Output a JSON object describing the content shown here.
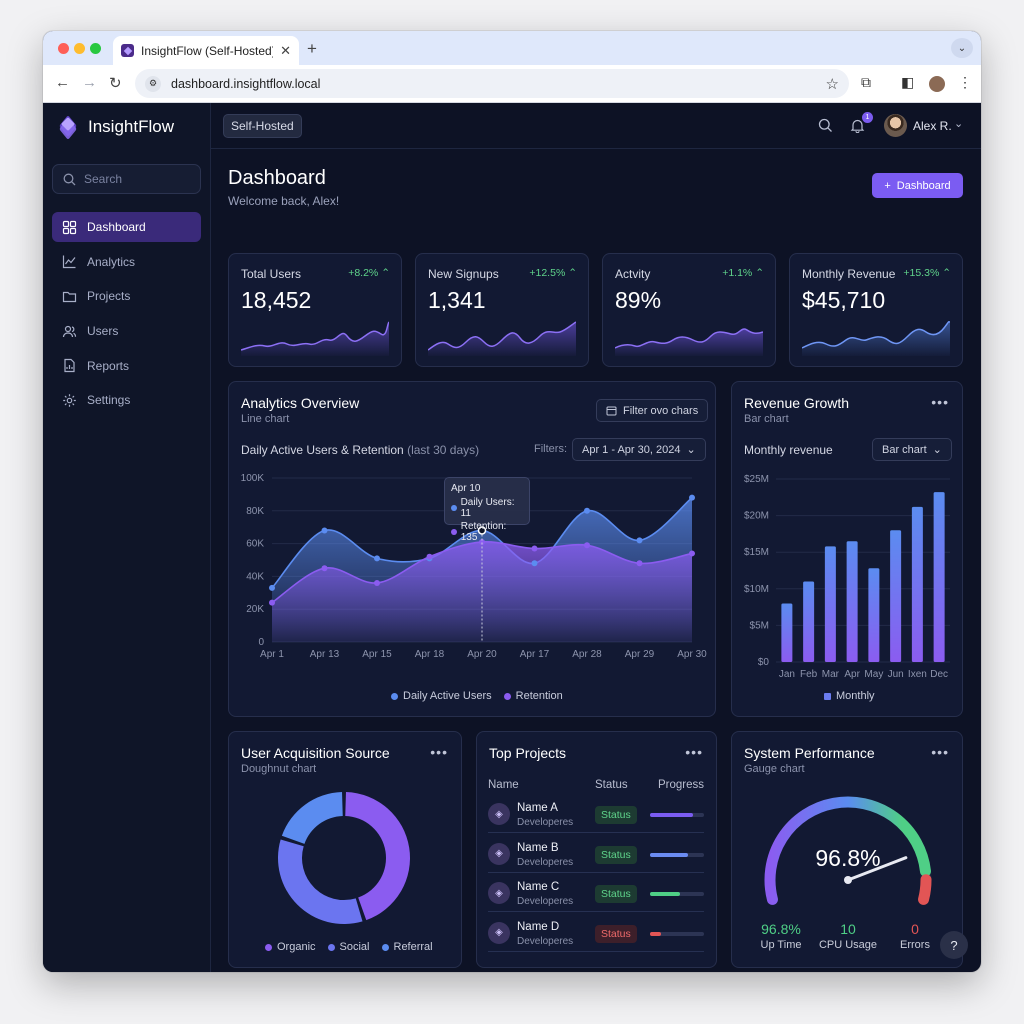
{
  "browser": {
    "tab_title": "InsightFlow (Self-Hosted)",
    "url": "dashboard.insightflow.local"
  },
  "sidebar": {
    "brand": "InsightFlow",
    "search_placeholder": "Search",
    "items": [
      {
        "label": "Dashboard",
        "icon": "grid-icon",
        "active": true
      },
      {
        "label": "Analytics",
        "icon": "line-chart-icon"
      },
      {
        "label": "Projects",
        "icon": "folder-icon"
      },
      {
        "label": "Users",
        "icon": "users-icon"
      },
      {
        "label": "Reports",
        "icon": "report-icon"
      },
      {
        "label": "Settings",
        "icon": "gear-icon"
      }
    ]
  },
  "topbar": {
    "env_label": "Self-Hosted",
    "notification_count": "1",
    "user_name": "Alex R."
  },
  "page": {
    "title": "Dashboard",
    "subtitle": "Welcome back, Alex!",
    "primary_button": "Dashboard"
  },
  "stats": [
    {
      "label": "Total Users",
      "change": "+8.2%",
      "value": "18,452"
    },
    {
      "label": "New Signups",
      "change": "+12.5%",
      "value": "1,341"
    },
    {
      "label": "Actvity",
      "change": "+1.1%",
      "value": "89%"
    },
    {
      "label": "Monthly Revenue",
      "change": "+15.3%",
      "value": "$45,710"
    }
  ],
  "analytics": {
    "title": "Analytics Overview",
    "subtitle": "Line chart",
    "filter_button": "Filter ovo chars",
    "series_title": "Daily Active Users & Retention",
    "series_title_suffix": "(last 30 days)",
    "filters_label": "Filters:",
    "date_range": "Apr 1 - Apr 30, 2024",
    "tooltip": {
      "date": "Apr 10",
      "line1": "Daily Users: 11",
      "line2": "Retention: 135"
    },
    "legend": [
      "Daily Active Users",
      "Retention"
    ]
  },
  "revenue": {
    "title": "Revenue Growth",
    "subtitle": "Bar chart",
    "row_label": "Monthly revenue",
    "select_value": "Bar chart",
    "legend": "Monthly"
  },
  "acquisition": {
    "title": "User Acquisition Source",
    "subtitle": "Doughnut chart",
    "legend": [
      "Organic",
      "Social",
      "Referral"
    ]
  },
  "projects": {
    "title": "Top Projects",
    "headers": [
      "Name",
      "Status",
      "Progress"
    ],
    "rows": [
      {
        "name": "Name A",
        "role": "Developeres",
        "status": "Status",
        "progress": 0.8,
        "color": "#7b5cf2",
        "status_color": "green"
      },
      {
        "name": "Name B",
        "role": "Developeres",
        "status": "Status",
        "progress": 0.7,
        "color": "#6b8cf2",
        "status_color": "green"
      },
      {
        "name": "Name C",
        "role": "Developeres",
        "status": "Status",
        "progress": 0.55,
        "color": "#4fcf86",
        "status_color": "green"
      },
      {
        "name": "Name D",
        "role": "Developeres",
        "status": "Status",
        "progress": 0.2,
        "color": "#e25555",
        "status_color": "red"
      }
    ]
  },
  "performance": {
    "title": "System Performance",
    "subtitle": "Gauge chart",
    "gauge_value": "96.8%",
    "gauge_fraction": 0.968,
    "stats": [
      {
        "value": "96.8%",
        "label": "Up Time",
        "color": "#4fcf86"
      },
      {
        "value": "10",
        "label": "CPU Usage",
        "color": "#4fcf86"
      },
      {
        "value": "0",
        "label": "Errors",
        "color": "#e25555"
      }
    ]
  },
  "help_label": "?",
  "chart_data": [
    {
      "type": "line",
      "title": "Daily Active Users & Retention",
      "x_tick_labels": [
        "Apr 1",
        "Apr 13",
        "Apr 15",
        "Apr 18",
        "Apr 20",
        "Apr 17",
        "Apr 28",
        "Apr 29",
        "Apr 30"
      ],
      "y_tick_labels": [
        "0",
        "20K",
        "40K",
        "60K",
        "80K",
        "100K"
      ],
      "ylim": [
        0,
        100000
      ],
      "series": [
        {
          "name": "Daily Active Users",
          "color": "#5b8cf0",
          "values": [
            33000,
            68000,
            51000,
            51000,
            68000,
            48000,
            80000,
            62000,
            88000
          ]
        },
        {
          "name": "Retention",
          "color": "#8b5cf0",
          "values": [
            24000,
            45000,
            36000,
            52000,
            61000,
            57000,
            59000,
            48000,
            54000
          ]
        }
      ],
      "legend_position": "bottom",
      "grid": true
    },
    {
      "type": "bar",
      "title": "Monthly revenue",
      "categories": [
        "Jan",
        "Feb",
        "Mar",
        "Apr",
        "May",
        "Jun",
        "Ixen",
        "Dec"
      ],
      "y_tick_labels": [
        "$0",
        "$5M",
        "$10M",
        "$15M",
        "$20M",
        "$25M"
      ],
      "ylim": [
        0,
        25000000
      ],
      "series": [
        {
          "name": "Monthly",
          "values": [
            8000000,
            11000000,
            15800000,
            16500000,
            12800000,
            18000000,
            21200000,
            23200000
          ]
        }
      ],
      "legend_position": "bottom",
      "grid": true
    },
    {
      "type": "pie",
      "title": "User Acquisition Source",
      "categories": [
        "Organic",
        "Social",
        "Referral"
      ],
      "values": [
        45,
        35,
        20
      ],
      "colors": [
        "#8b5cf0",
        "#6b75f0",
        "#5b8cf0"
      ]
    }
  ]
}
